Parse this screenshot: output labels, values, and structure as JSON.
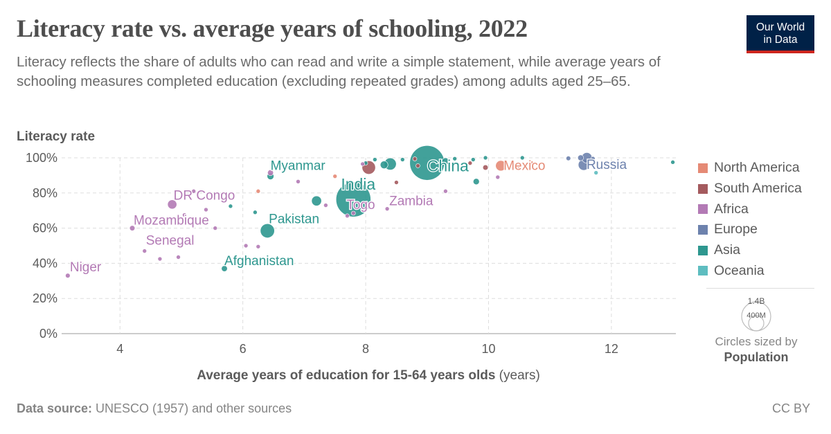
{
  "header": {
    "title": "Literacy rate vs. average years of schooling, 2022",
    "subtitle": "Literacy reflects the share of adults who can read and write a simple statement, while average years of schooling measures completed education (excluding repeated grades) among adults aged 25–65.",
    "logo_line1": "Our World",
    "logo_line2": "in Data"
  },
  "footer": {
    "source_label": "Data source:",
    "source_text": " UNESCO (1957) and other sources",
    "license": "CC BY"
  },
  "size_legend": {
    "big_label": "1.4B",
    "small_label": "400M",
    "note_line1": "Circles sized by",
    "note_line2": "Population"
  },
  "legend": [
    {
      "name": "North America",
      "color": "#e58a75"
    },
    {
      "name": "South America",
      "color": "#a45a5e"
    },
    {
      "name": "Africa",
      "color": "#b37ab5"
    },
    {
      "name": "Europe",
      "color": "#6d82ad"
    },
    {
      "name": "Asia",
      "color": "#2e978f"
    },
    {
      "name": "Oceania",
      "color": "#5ebdc0"
    }
  ],
  "chart_data": {
    "type": "scatter",
    "title": "Literacy rate vs. average years of schooling, 2022",
    "xlabel": "Average years of education for 15-64 years olds",
    "xlabel_unit": " (years)",
    "ylabel": "Literacy rate",
    "xlim": [
      3.05,
      13.05
    ],
    "ylim": [
      0,
      100
    ],
    "x_ticks": [
      4,
      6,
      8,
      10,
      12
    ],
    "y_ticks": [
      0,
      20,
      40,
      60,
      80,
      100
    ],
    "y_tick_labels": [
      "0%",
      "20%",
      "40%",
      "60%",
      "80%",
      "100%"
    ],
    "grid": true,
    "legend_position": "right",
    "size_by": "Population",
    "colors": {
      "North America": "#e58a75",
      "South America": "#a45a5e",
      "Africa": "#b37ab5",
      "Europe": "#6d82ad",
      "Asia": "#2e978f",
      "Oceania": "#5ebdc0"
    },
    "points": [
      {
        "x": 7.8,
        "y": 76.3,
        "pop": 1420,
        "region": "Asia",
        "label": "India",
        "label_size": "large"
      },
      {
        "x": 9.0,
        "y": 97.1,
        "pop": 1410,
        "region": "Asia",
        "label": "China",
        "label_size": "large"
      },
      {
        "x": 6.4,
        "y": 58.5,
        "pop": 235,
        "region": "Asia",
        "label": "Pakistan"
      },
      {
        "x": 7.8,
        "y": 68.5,
        "pop": 9,
        "region": "Africa",
        "label": "Togo"
      },
      {
        "x": 8.05,
        "y": 94.5,
        "pop": 210,
        "region": "South America"
      },
      {
        "x": 8.4,
        "y": 96.5,
        "pop": 170,
        "region": "Asia"
      },
      {
        "x": 8.3,
        "y": 96.0,
        "pop": 70,
        "region": "Asia"
      },
      {
        "x": 7.2,
        "y": 75.5,
        "pop": 115,
        "region": "Asia"
      },
      {
        "x": 9.3,
        "y": 98.0,
        "pop": 60,
        "region": "Asia"
      },
      {
        "x": 9.8,
        "y": 86.5,
        "pop": 45,
        "region": "Asia"
      },
      {
        "x": 11.6,
        "y": 100.0,
        "pop": 130,
        "region": "Europe"
      },
      {
        "x": 11.5,
        "y": 100.0,
        "pop": 40,
        "region": "Europe"
      },
      {
        "x": 11.3,
        "y": 99.7,
        "pop": 25,
        "region": "Europe"
      },
      {
        "x": 11.7,
        "y": 99.6,
        "pop": 20,
        "region": "Europe"
      },
      {
        "x": 11.55,
        "y": 96.0,
        "pop": 140,
        "region": "Europe",
        "label": "Russia"
      },
      {
        "x": 10.2,
        "y": 95.5,
        "pop": 127,
        "region": "North America",
        "label": "Mexico"
      },
      {
        "x": 10.5,
        "y": 95.0,
        "pop": 8,
        "region": "North America"
      },
      {
        "x": 9.95,
        "y": 94.5,
        "pop": 33,
        "region": "South America"
      },
      {
        "x": 8.8,
        "y": 99.4,
        "pop": 20,
        "region": "South America"
      },
      {
        "x": 8.85,
        "y": 95.5,
        "pop": 18,
        "region": "South America"
      },
      {
        "x": 8.5,
        "y": 86.0,
        "pop": 12,
        "region": "South America"
      },
      {
        "x": 7.5,
        "y": 89.5,
        "pop": 17,
        "region": "North America"
      },
      {
        "x": 6.25,
        "y": 81.0,
        "pop": 10,
        "region": "North America"
      },
      {
        "x": 6.45,
        "y": 89.5,
        "pop": 54,
        "region": "Asia",
        "label": "Myanmar"
      },
      {
        "x": 6.45,
        "y": 91.5,
        "pop": 40,
        "region": "Africa"
      },
      {
        "x": 6.9,
        "y": 86.5,
        "pop": 17,
        "region": "Africa"
      },
      {
        "x": 4.85,
        "y": 73.5,
        "pop": 100,
        "region": "Africa",
        "label": "DR Congo"
      },
      {
        "x": 5.2,
        "y": 81.0,
        "pop": 10,
        "region": "Africa"
      },
      {
        "x": 5.4,
        "y": 70.5,
        "pop": 8,
        "region": "Africa"
      },
      {
        "x": 5.05,
        "y": 67.5,
        "pop": 6,
        "region": "Africa"
      },
      {
        "x": 5.55,
        "y": 60.0,
        "pop": 9,
        "region": "Africa"
      },
      {
        "x": 4.2,
        "y": 60.0,
        "pop": 33,
        "region": "Africa",
        "label": "Mozambique"
      },
      {
        "x": 4.4,
        "y": 47.0,
        "pop": 17,
        "region": "Africa",
        "label": "Senegal"
      },
      {
        "x": 4.65,
        "y": 42.5,
        "pop": 12,
        "region": "Africa"
      },
      {
        "x": 4.95,
        "y": 43.5,
        "pop": 8,
        "region": "Africa"
      },
      {
        "x": 3.15,
        "y": 33.0,
        "pop": 26,
        "region": "Africa",
        "label": "Niger"
      },
      {
        "x": 6.05,
        "y": 50.0,
        "pop": 9,
        "region": "Africa"
      },
      {
        "x": 6.25,
        "y": 49.5,
        "pop": 6,
        "region": "Africa"
      },
      {
        "x": 5.7,
        "y": 37.0,
        "pop": 41,
        "region": "Asia",
        "label": "Afghanistan"
      },
      {
        "x": 5.8,
        "y": 72.5,
        "pop": 6,
        "region": "Asia"
      },
      {
        "x": 6.2,
        "y": 69.0,
        "pop": 6,
        "region": "Asia"
      },
      {
        "x": 7.35,
        "y": 73.0,
        "pop": 8,
        "region": "Africa"
      },
      {
        "x": 7.7,
        "y": 67.0,
        "pop": 10,
        "region": "Africa"
      },
      {
        "x": 8.35,
        "y": 71.0,
        "pop": 20,
        "region": "Africa",
        "label": "Zambia"
      },
      {
        "x": 9.3,
        "y": 81.0,
        "pop": 6,
        "region": "Africa"
      },
      {
        "x": 10.15,
        "y": 89.0,
        "pop": 7,
        "region": "Africa"
      },
      {
        "x": 11.75,
        "y": 91.5,
        "pop": 6,
        "region": "Oceania"
      },
      {
        "x": 13.0,
        "y": 97.5,
        "pop": 5,
        "region": "Asia"
      },
      {
        "x": 10.55,
        "y": 100.0,
        "pop": 5,
        "region": "Asia"
      },
      {
        "x": 9.95,
        "y": 100.0,
        "pop": 5,
        "region": "Asia"
      },
      {
        "x": 9.75,
        "y": 99.0,
        "pop": 8,
        "region": "Asia"
      },
      {
        "x": 9.45,
        "y": 99.5,
        "pop": 6,
        "region": "Asia"
      },
      {
        "x": 8.6,
        "y": 99.0,
        "pop": 5,
        "region": "Asia"
      },
      {
        "x": 8.15,
        "y": 99.0,
        "pop": 5,
        "region": "Asia"
      },
      {
        "x": 8.0,
        "y": 97.0,
        "pop": 8,
        "region": "Asia"
      },
      {
        "x": 7.95,
        "y": 96.5,
        "pop": 6,
        "region": "Africa"
      },
      {
        "x": 10.7,
        "y": 97.0,
        "pop": 6,
        "region": "North America"
      },
      {
        "x": 9.7,
        "y": 97.0,
        "pop": 5,
        "region": "South America"
      }
    ]
  }
}
